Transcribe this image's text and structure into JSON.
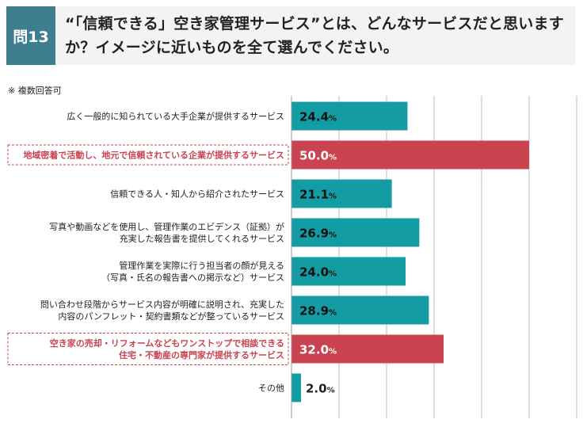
{
  "question": {
    "number": "問13",
    "text": "“「信頼できる」空き家管理サービス”とは、どんなサービスだと思いますか？イメージに近いものを全て選んでください。"
  },
  "note": "※ 複数回答可",
  "colors": {
    "teal": "#139ca3",
    "red": "#c94450",
    "badge": "#3d7f8f",
    "grid": "#bdbdbd"
  },
  "chart_data": {
    "type": "bar",
    "orientation": "horizontal",
    "unit": "%",
    "xlim": [
      0,
      60
    ],
    "grid": true,
    "categories": [
      [
        "広く一般的に知られている大手企業が提供するサービス"
      ],
      [
        "地域密着で活動し、地元で信頼されている企業が提供するサービス"
      ],
      [
        "信頼できる人・知人から紹介されたサービス"
      ],
      [
        "写真や動画などを使用し、管理作業のエビデンス（証拠）が",
        "充実した報告書を提供してくれるサービス"
      ],
      [
        "管理作業を実際に行う担当者の顔が見える",
        "（写真・氏名の報告書への掲示など）サービス"
      ],
      [
        "問い合わせ段階からサービス内容が明確に説明され、充実した",
        "内容のパンフレット・契約書類などが整っているサービス"
      ],
      [
        "空き家の売却・リフォームなどもワンストップで相談できる",
        "住宅・不動産の専門家が提供するサービス"
      ],
      [
        "その他"
      ]
    ],
    "values": [
      24.4,
      50.0,
      21.1,
      26.9,
      24.0,
      28.9,
      32.0,
      2.0
    ],
    "value_labels": [
      "24.4",
      "50.0",
      "21.1",
      "26.9",
      "24.0",
      "28.9",
      "32.0",
      "2.0"
    ],
    "highlighted": [
      false,
      true,
      false,
      false,
      false,
      false,
      true,
      false
    ]
  }
}
